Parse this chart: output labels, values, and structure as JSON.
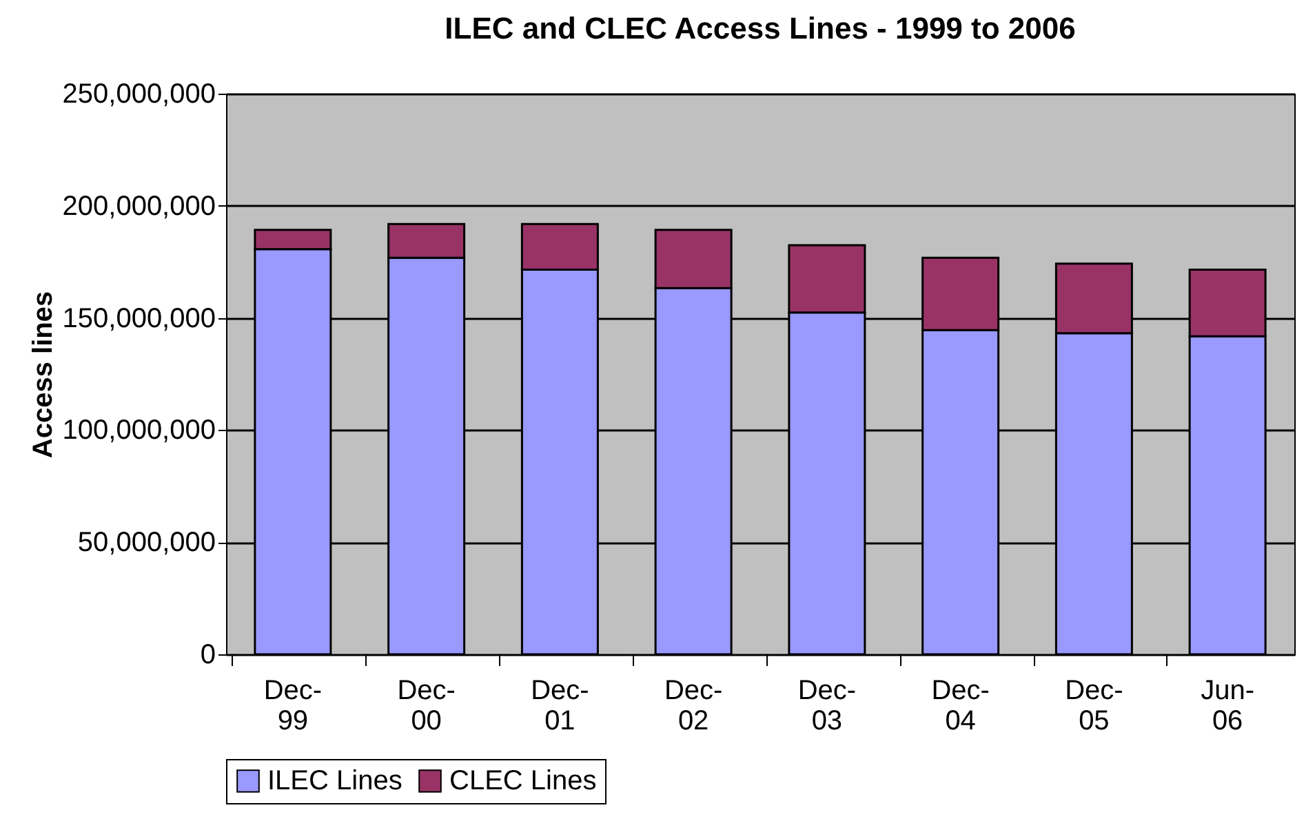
{
  "chart_data": {
    "type": "bar",
    "title": "ILEC and CLEC Access Lines - 1999 to 2006",
    "ylabel": "Access lines",
    "categories": [
      "Dec-99",
      "Dec-00",
      "Dec-01",
      "Dec-02",
      "Dec-03",
      "Dec-04",
      "Dec-05",
      "Jun-06"
    ],
    "stacked": true,
    "series": [
      {
        "name": "ILEC Lines",
        "color": "#9999ff",
        "values": [
          180700000,
          176800000,
          171500000,
          163300000,
          152400000,
          144600000,
          143200000,
          141800000
        ]
      },
      {
        "name": "CLEC Lines",
        "color": "#993366",
        "values": [
          8600000,
          15100000,
          20400000,
          26000000,
          30000000,
          32200000,
          31000000,
          29700000
        ]
      }
    ],
    "ylim": [
      0,
      250000000
    ],
    "yticks": [
      0,
      {
        "value": 50000000,
        "label": "50,000,000"
      },
      {
        "value": 100000000,
        "label": "100,000,000"
      },
      {
        "value": 150000000,
        "label": "150,000,000"
      },
      {
        "value": 200000000,
        "label": "200,000,000"
      },
      {
        "value": 250000000,
        "label": "250,000,000"
      }
    ],
    "grid": "y",
    "legend": "bottom"
  }
}
